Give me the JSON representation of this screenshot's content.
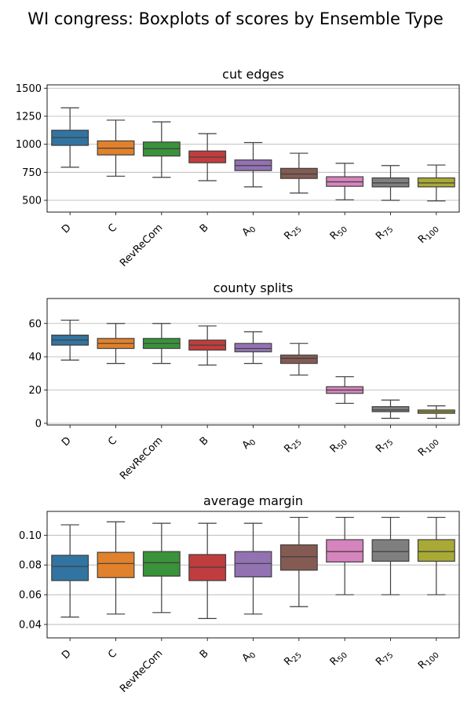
{
  "figure": {
    "title": "WI congress: Boxplots of scores by Ensemble Type"
  },
  "chart_data": [
    {
      "type": "box",
      "title": "cut edges",
      "categories": [
        "D",
        "C",
        "RevReCom",
        "B",
        "A0",
        "R25",
        "R50",
        "R75",
        "R100"
      ],
      "colors": [
        "#3274a1",
        "#e1812c",
        "#3a923a",
        "#c03d3e",
        "#9372b2",
        "#845b53",
        "#d684bd",
        "#7f7f7f",
        "#a9aa35"
      ],
      "ylim": [
        395,
        1530
      ],
      "yticks": [
        500,
        750,
        1000,
        1250,
        1500
      ],
      "grid": true,
      "boxes": [
        {
          "whislo": 795,
          "q1": 990,
          "med": 1060,
          "q3": 1125,
          "whishi": 1325
        },
        {
          "whislo": 715,
          "q1": 905,
          "med": 965,
          "q3": 1030,
          "whishi": 1215
        },
        {
          "whislo": 705,
          "q1": 895,
          "med": 960,
          "q3": 1020,
          "whishi": 1200
        },
        {
          "whislo": 675,
          "q1": 835,
          "med": 885,
          "q3": 940,
          "whishi": 1095
        },
        {
          "whislo": 620,
          "q1": 765,
          "med": 810,
          "q3": 860,
          "whishi": 1015
        },
        {
          "whislo": 565,
          "q1": 695,
          "med": 735,
          "q3": 785,
          "whishi": 920
        },
        {
          "whislo": 505,
          "q1": 625,
          "med": 665,
          "q3": 710,
          "whishi": 830
        },
        {
          "whislo": 500,
          "q1": 620,
          "med": 655,
          "q3": 700,
          "whishi": 810
        },
        {
          "whislo": 495,
          "q1": 620,
          "med": 655,
          "q3": 700,
          "whishi": 815
        }
      ]
    },
    {
      "type": "box",
      "title": "county splits",
      "categories": [
        "D",
        "C",
        "RevReCom",
        "B",
        "A0",
        "R25",
        "R50",
        "R75",
        "R100"
      ],
      "colors": [
        "#3274a1",
        "#e1812c",
        "#3a923a",
        "#c03d3e",
        "#9372b2",
        "#845b53",
        "#d684bd",
        "#7f7f7f",
        "#a9aa35"
      ],
      "ylim": [
        -1,
        75
      ],
      "yticks": [
        0,
        20,
        40,
        60
      ],
      "grid": true,
      "boxes": [
        {
          "whislo": 38,
          "q1": 47,
          "med": 50,
          "q3": 53,
          "whishi": 62
        },
        {
          "whislo": 36,
          "q1": 45,
          "med": 48,
          "q3": 51,
          "whishi": 60
        },
        {
          "whislo": 36,
          "q1": 45,
          "med": 48,
          "q3": 51,
          "whishi": 60
        },
        {
          "whislo": 35,
          "q1": 44,
          "med": 47,
          "q3": 50,
          "whishi": 58.5
        },
        {
          "whislo": 36,
          "q1": 43,
          "med": 45,
          "q3": 48,
          "whishi": 55
        },
        {
          "whislo": 29,
          "q1": 36,
          "med": 39,
          "q3": 41,
          "whishi": 48
        },
        {
          "whislo": 12,
          "q1": 18,
          "med": 20,
          "q3": 22,
          "whishi": 28
        },
        {
          "whislo": 3,
          "q1": 7,
          "med": 8,
          "q3": 10,
          "whishi": 14
        },
        {
          "whislo": 3,
          "q1": 6,
          "med": 7,
          "q3": 8,
          "whishi": 10.5
        }
      ]
    },
    {
      "type": "box",
      "title": "average margin",
      "categories": [
        "D",
        "C",
        "RevReCom",
        "B",
        "A0",
        "R25",
        "R50",
        "R75",
        "R100"
      ],
      "colors": [
        "#3274a1",
        "#e1812c",
        "#3a923a",
        "#c03d3e",
        "#9372b2",
        "#845b53",
        "#d684bd",
        "#7f7f7f",
        "#a9aa35"
      ],
      "ylim": [
        0.031,
        0.116
      ],
      "yticks": [
        0.04,
        0.06,
        0.08,
        0.1
      ],
      "ytick_labels": [
        "0.04",
        "0.06",
        "0.08",
        "0.10"
      ],
      "grid": true,
      "boxes": [
        {
          "whislo": 0.045,
          "q1": 0.0695,
          "med": 0.079,
          "q3": 0.0865,
          "whishi": 0.107
        },
        {
          "whislo": 0.047,
          "q1": 0.0715,
          "med": 0.081,
          "q3": 0.0885,
          "whishi": 0.109
        },
        {
          "whislo": 0.048,
          "q1": 0.0725,
          "med": 0.0815,
          "q3": 0.089,
          "whishi": 0.108
        },
        {
          "whislo": 0.044,
          "q1": 0.0695,
          "med": 0.0785,
          "q3": 0.087,
          "whishi": 0.108
        },
        {
          "whislo": 0.047,
          "q1": 0.072,
          "med": 0.081,
          "q3": 0.089,
          "whishi": 0.108
        },
        {
          "whislo": 0.052,
          "q1": 0.0765,
          "med": 0.0855,
          "q3": 0.0935,
          "whishi": 0.112
        },
        {
          "whislo": 0.06,
          "q1": 0.082,
          "med": 0.089,
          "q3": 0.097,
          "whishi": 0.112
        },
        {
          "whislo": 0.06,
          "q1": 0.0825,
          "med": 0.089,
          "q3": 0.097,
          "whishi": 0.112
        },
        {
          "whislo": 0.06,
          "q1": 0.0825,
          "med": 0.089,
          "q3": 0.097,
          "whishi": 0.112
        }
      ]
    }
  ]
}
